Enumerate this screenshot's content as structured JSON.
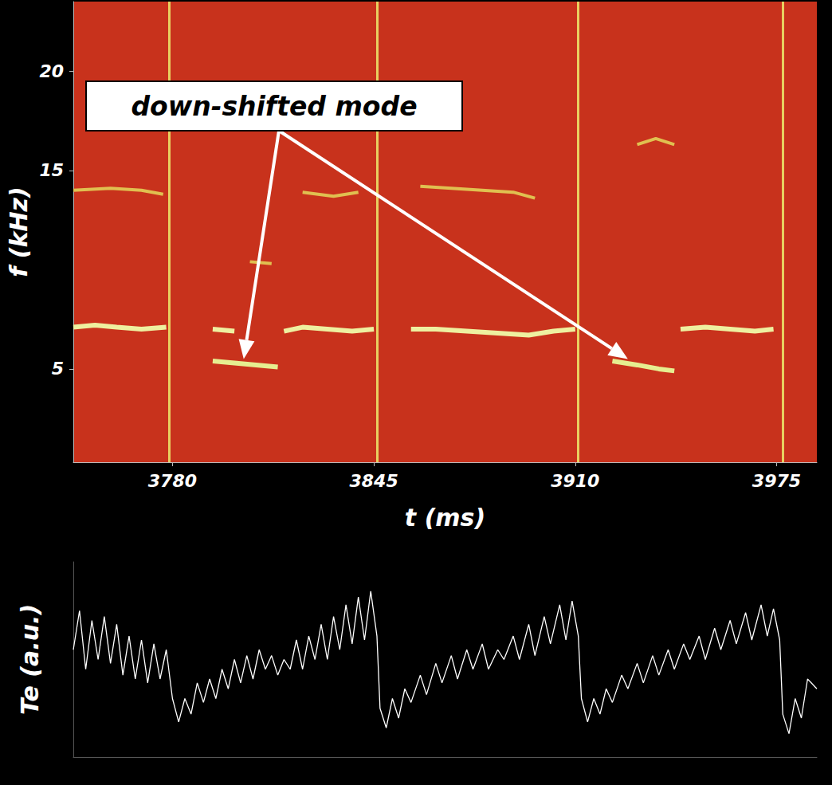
{
  "chart_data": [
    {
      "type": "line",
      "x_label": "t (ms)",
      "y_label": "f (kHz)",
      "xlim": [
        3748,
        3988
      ],
      "xticks": [
        3780,
        3845,
        3910,
        3975
      ],
      "ylim": [
        0.3,
        23.5
      ],
      "yticks": [
        5,
        15,
        20
      ],
      "grid": false,
      "series": [
        {
          "color": "#eef0a0",
          "x": [
            3748,
            3755,
            3762,
            3770,
            3778,
            3786,
            3793,
            3800,
            3808,
            3816,
            3822,
            3830,
            3838,
            3845,
            3851,
            3857,
            3865,
            3875,
            3885,
            3895,
            3903,
            3910,
            3930,
            3944,
            3952,
            3960,
            3968,
            3974
          ],
          "values": [
            7.1,
            7.2,
            7.1,
            7.0,
            7.1,
            null,
            7.0,
            6.9,
            null,
            6.9,
            7.1,
            7.0,
            6.9,
            7.0,
            null,
            7.0,
            7.0,
            6.9,
            6.8,
            6.7,
            6.9,
            7.0,
            null,
            7.0,
            7.1,
            7.0,
            6.9,
            7.0
          ]
        },
        {
          "color": "#e6ee90",
          "x": [
            3793,
            3800,
            3807,
            3814,
            3818,
            3922,
            3930,
            3937,
            3942
          ],
          "values": [
            5.4,
            5.3,
            5.2,
            5.1,
            null,
            5.4,
            5.2,
            5.0,
            4.9
          ]
        },
        {
          "color": "#e0c050",
          "x": [
            3748,
            3760,
            3770,
            3777,
            3800,
            3805,
            3812,
            3816,
            3822,
            3832,
            3840,
            3850,
            3860,
            3870,
            3880,
            3890,
            3897,
            3905,
            3930,
            3936,
            3942
          ],
          "values": [
            14.0,
            14.1,
            14.0,
            13.8,
            null,
            10.4,
            10.3,
            null,
            13.9,
            13.7,
            13.9,
            null,
            14.2,
            14.1,
            14.0,
            13.9,
            13.6,
            null,
            16.3,
            16.6,
            16.3
          ]
        }
      ],
      "crashes": [
        3779,
        3846,
        3911,
        3977
      ],
      "annotation": {
        "text": "down-shifted mode",
        "targets": [
          [
            3803,
            5.5
          ],
          [
            3927,
            5.5
          ]
        ]
      }
    },
    {
      "type": "line",
      "y_label": "Te (a.u.)",
      "xlim": [
        3748,
        3988
      ],
      "ylim": [
        0,
        1
      ],
      "tick_labels": false,
      "grid": false,
      "series": [
        {
          "color": "#ffffff",
          "x": [
            3748,
            3750,
            3752,
            3754,
            3756,
            3758,
            3760,
            3762,
            3764,
            3766,
            3768,
            3770,
            3772,
            3774,
            3776,
            3778,
            3780,
            3782,
            3784,
            3786,
            3788,
            3790,
            3792,
            3794,
            3796,
            3798,
            3800,
            3802,
            3804,
            3806,
            3808,
            3810,
            3812,
            3814,
            3816,
            3818,
            3820,
            3822,
            3824,
            3826,
            3828,
            3830,
            3832,
            3834,
            3836,
            3838,
            3840,
            3842,
            3844,
            3846,
            3847,
            3849,
            3851,
            3853,
            3855,
            3857,
            3860,
            3862,
            3865,
            3867,
            3870,
            3872,
            3875,
            3877,
            3880,
            3882,
            3885,
            3887,
            3890,
            3892,
            3895,
            3897,
            3900,
            3902,
            3905,
            3907,
            3909,
            3911,
            3912,
            3914,
            3916,
            3918,
            3920,
            3922,
            3925,
            3927,
            3930,
            3932,
            3935,
            3937,
            3940,
            3942,
            3945,
            3947,
            3950,
            3952,
            3955,
            3957,
            3960,
            3962,
            3965,
            3967,
            3970,
            3972,
            3974,
            3976,
            3977,
            3979,
            3981,
            3983,
            3985,
            3988
          ],
          "values": [
            0.55,
            0.75,
            0.45,
            0.7,
            0.5,
            0.72,
            0.48,
            0.68,
            0.42,
            0.62,
            0.4,
            0.6,
            0.38,
            0.58,
            0.4,
            0.55,
            0.3,
            0.18,
            0.3,
            0.22,
            0.38,
            0.28,
            0.4,
            0.3,
            0.45,
            0.35,
            0.5,
            0.38,
            0.52,
            0.4,
            0.55,
            0.45,
            0.52,
            0.42,
            0.5,
            0.45,
            0.6,
            0.45,
            0.62,
            0.5,
            0.68,
            0.5,
            0.72,
            0.55,
            0.78,
            0.58,
            0.82,
            0.6,
            0.85,
            0.62,
            0.25,
            0.15,
            0.3,
            0.2,
            0.35,
            0.28,
            0.42,
            0.32,
            0.48,
            0.38,
            0.52,
            0.4,
            0.55,
            0.45,
            0.58,
            0.45,
            0.55,
            0.5,
            0.62,
            0.5,
            0.68,
            0.52,
            0.72,
            0.58,
            0.78,
            0.6,
            0.8,
            0.62,
            0.3,
            0.18,
            0.3,
            0.22,
            0.35,
            0.28,
            0.42,
            0.35,
            0.48,
            0.38,
            0.52,
            0.42,
            0.55,
            0.45,
            0.58,
            0.5,
            0.62,
            0.5,
            0.66,
            0.55,
            0.7,
            0.58,
            0.74,
            0.6,
            0.78,
            0.62,
            0.76,
            0.6,
            0.22,
            0.12,
            0.3,
            0.2,
            0.4,
            0.35
          ]
        }
      ]
    }
  ]
}
